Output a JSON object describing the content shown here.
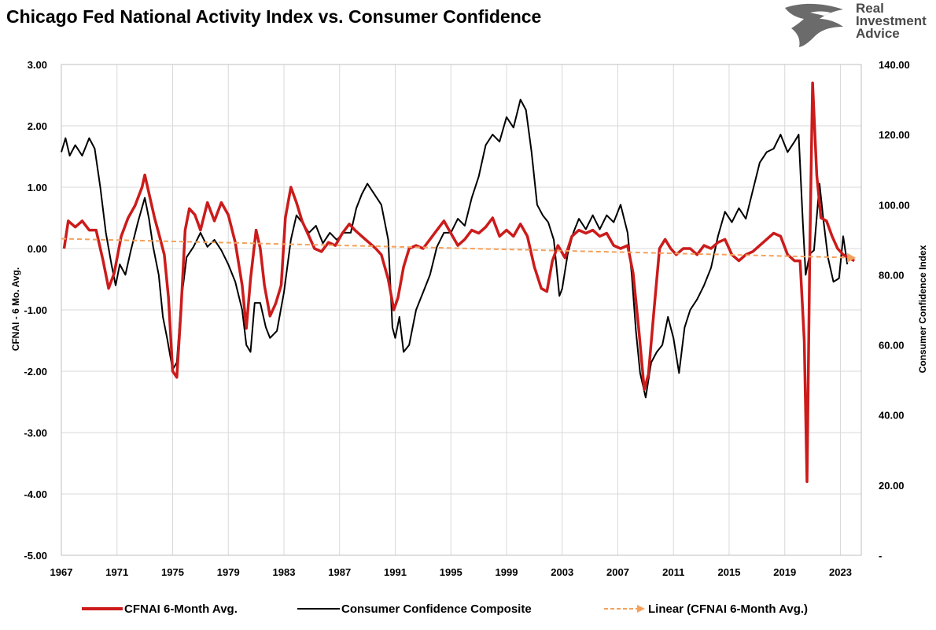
{
  "chart_data": {
    "type": "line",
    "title": "Chicago Fed National Activity Index vs. Consumer Confidence",
    "brand": {
      "lines": [
        "Real",
        "Investment",
        "Advice"
      ],
      "icon": "eagle-logo-icon"
    },
    "ylabel_left": "CFNAI - 6 Mo. Avg.",
    "ylabel_right": "Consumer Confidence Index",
    "ylim_left": [
      -5,
      3
    ],
    "ylim_right": [
      0,
      140
    ],
    "yticks_left": [
      "3.00",
      "2.00",
      "1.00",
      "0.00",
      "-1.00",
      "-2.00",
      "-3.00",
      "-4.00",
      "-5.00"
    ],
    "yticks_right": [
      "140.00",
      "120.00",
      "100.00",
      "80.00",
      "60.00",
      "40.00",
      "20.00",
      "-"
    ],
    "xlim": [
      1967,
      2024.5
    ],
    "xticks": [
      "1967",
      "1971",
      "1975",
      "1979",
      "1983",
      "1987",
      "1991",
      "1995",
      "1999",
      "2003",
      "2007",
      "2011",
      "2015",
      "2019",
      "2023"
    ],
    "grid": true,
    "legend_position": "bottom",
    "series": [
      {
        "name": "CFNAI 6-Month Avg.",
        "axis": "left",
        "color": "#cc1b1b",
        "points": [
          [
            1967.2,
            0.0
          ],
          [
            1967.5,
            0.45
          ],
          [
            1968.0,
            0.35
          ],
          [
            1968.5,
            0.45
          ],
          [
            1969.0,
            0.3
          ],
          [
            1969.5,
            0.3
          ],
          [
            1970.0,
            -0.2
          ],
          [
            1970.4,
            -0.65
          ],
          [
            1970.8,
            -0.4
          ],
          [
            1971.3,
            0.2
          ],
          [
            1971.8,
            0.5
          ],
          [
            1972.3,
            0.7
          ],
          [
            1972.8,
            1.0
          ],
          [
            1973.0,
            1.2
          ],
          [
            1973.3,
            0.9
          ],
          [
            1973.7,
            0.5
          ],
          [
            1974.0,
            0.25
          ],
          [
            1974.4,
            -0.1
          ],
          [
            1974.7,
            -0.8
          ],
          [
            1975.0,
            -2.0
          ],
          [
            1975.3,
            -2.1
          ],
          [
            1975.6,
            -1.0
          ],
          [
            1975.9,
            0.3
          ],
          [
            1976.2,
            0.65
          ],
          [
            1976.6,
            0.55
          ],
          [
            1977.0,
            0.3
          ],
          [
            1977.5,
            0.75
          ],
          [
            1978.0,
            0.45
          ],
          [
            1978.5,
            0.75
          ],
          [
            1979.0,
            0.55
          ],
          [
            1979.5,
            0.1
          ],
          [
            1980.0,
            -0.6
          ],
          [
            1980.3,
            -1.3
          ],
          [
            1980.6,
            -0.5
          ],
          [
            1981.0,
            0.3
          ],
          [
            1981.3,
            0.0
          ],
          [
            1981.6,
            -0.6
          ],
          [
            1982.0,
            -1.1
          ],
          [
            1982.4,
            -0.9
          ],
          [
            1982.8,
            -0.6
          ],
          [
            1983.1,
            0.5
          ],
          [
            1983.5,
            1.0
          ],
          [
            1983.9,
            0.75
          ],
          [
            1984.3,
            0.45
          ],
          [
            1984.8,
            0.2
          ],
          [
            1985.2,
            0.0
          ],
          [
            1985.7,
            -0.05
          ],
          [
            1986.2,
            0.1
          ],
          [
            1986.7,
            0.05
          ],
          [
            1987.2,
            0.25
          ],
          [
            1987.7,
            0.4
          ],
          [
            1988.1,
            0.3
          ],
          [
            1988.6,
            0.2
          ],
          [
            1989.1,
            0.1
          ],
          [
            1989.6,
            0.0
          ],
          [
            1990.0,
            -0.1
          ],
          [
            1990.5,
            -0.5
          ],
          [
            1990.9,
            -1.0
          ],
          [
            1991.2,
            -0.8
          ],
          [
            1991.6,
            -0.3
          ],
          [
            1992.0,
            0.0
          ],
          [
            1992.5,
            0.05
          ],
          [
            1993.0,
            0.0
          ],
          [
            1993.5,
            0.15
          ],
          [
            1994.0,
            0.3
          ],
          [
            1994.5,
            0.45
          ],
          [
            1995.0,
            0.25
          ],
          [
            1995.5,
            0.05
          ],
          [
            1996.0,
            0.15
          ],
          [
            1996.5,
            0.3
          ],
          [
            1997.0,
            0.25
          ],
          [
            1997.5,
            0.35
          ],
          [
            1998.0,
            0.5
          ],
          [
            1998.5,
            0.2
          ],
          [
            1999.0,
            0.3
          ],
          [
            1999.5,
            0.2
          ],
          [
            2000.0,
            0.4
          ],
          [
            2000.5,
            0.2
          ],
          [
            2001.0,
            -0.3
          ],
          [
            2001.5,
            -0.65
          ],
          [
            2001.9,
            -0.7
          ],
          [
            2002.3,
            -0.2
          ],
          [
            2002.7,
            0.05
          ],
          [
            2003.2,
            -0.15
          ],
          [
            2003.7,
            0.2
          ],
          [
            2004.2,
            0.3
          ],
          [
            2004.7,
            0.25
          ],
          [
            2005.2,
            0.3
          ],
          [
            2005.7,
            0.2
          ],
          [
            2006.2,
            0.25
          ],
          [
            2006.7,
            0.05
          ],
          [
            2007.2,
            0.0
          ],
          [
            2007.7,
            0.05
          ],
          [
            2008.1,
            -0.4
          ],
          [
            2008.5,
            -1.3
          ],
          [
            2008.9,
            -2.3
          ],
          [
            2009.2,
            -2.05
          ],
          [
            2009.6,
            -1.0
          ],
          [
            2010.0,
            0.0
          ],
          [
            2010.4,
            0.15
          ],
          [
            2010.8,
            0.0
          ],
          [
            2011.2,
            -0.1
          ],
          [
            2011.7,
            0.0
          ],
          [
            2012.2,
            0.0
          ],
          [
            2012.7,
            -0.1
          ],
          [
            2013.2,
            0.05
          ],
          [
            2013.7,
            0.0
          ],
          [
            2014.2,
            0.1
          ],
          [
            2014.7,
            0.15
          ],
          [
            2015.2,
            -0.1
          ],
          [
            2015.7,
            -0.2
          ],
          [
            2016.2,
            -0.1
          ],
          [
            2016.7,
            -0.05
          ],
          [
            2017.2,
            0.05
          ],
          [
            2017.7,
            0.15
          ],
          [
            2018.2,
            0.25
          ],
          [
            2018.7,
            0.2
          ],
          [
            2019.2,
            -0.1
          ],
          [
            2019.7,
            -0.2
          ],
          [
            2020.1,
            -0.2
          ],
          [
            2020.4,
            -1.5
          ],
          [
            2020.6,
            -3.8
          ],
          [
            2020.8,
            0.0
          ],
          [
            2021.0,
            2.7
          ],
          [
            2021.3,
            1.2
          ],
          [
            2021.6,
            0.5
          ],
          [
            2022.0,
            0.45
          ],
          [
            2022.4,
            0.2
          ],
          [
            2022.8,
            0.0
          ],
          [
            2023.2,
            -0.1
          ],
          [
            2023.6,
            -0.15
          ],
          [
            2024.0,
            -0.2
          ]
        ]
      },
      {
        "name": "Consumer Confidence Composite",
        "axis": "right",
        "color": "#000000",
        "points": [
          [
            1967.0,
            115
          ],
          [
            1967.3,
            119
          ],
          [
            1967.6,
            114
          ],
          [
            1968.0,
            117
          ],
          [
            1968.5,
            114
          ],
          [
            1969.0,
            119
          ],
          [
            1969.4,
            116
          ],
          [
            1969.8,
            105
          ],
          [
            1970.2,
            92
          ],
          [
            1970.6,
            83
          ],
          [
            1970.9,
            77
          ],
          [
            1971.2,
            83
          ],
          [
            1971.6,
            80
          ],
          [
            1972.0,
            87
          ],
          [
            1972.5,
            95
          ],
          [
            1973.0,
            102
          ],
          [
            1973.3,
            96
          ],
          [
            1973.6,
            88
          ],
          [
            1974.0,
            80
          ],
          [
            1974.3,
            68
          ],
          [
            1974.6,
            62
          ],
          [
            1975.0,
            53
          ],
          [
            1975.3,
            55
          ],
          [
            1975.6,
            72
          ],
          [
            1976.0,
            85
          ],
          [
            1976.5,
            88
          ],
          [
            1977.0,
            92
          ],
          [
            1977.5,
            88
          ],
          [
            1978.0,
            90
          ],
          [
            1978.5,
            87
          ],
          [
            1979.0,
            83
          ],
          [
            1979.5,
            78
          ],
          [
            1980.0,
            70
          ],
          [
            1980.3,
            60
          ],
          [
            1980.6,
            58
          ],
          [
            1980.9,
            72
          ],
          [
            1981.3,
            72
          ],
          [
            1981.7,
            65
          ],
          [
            1982.0,
            62
          ],
          [
            1982.5,
            64
          ],
          [
            1983.0,
            75
          ],
          [
            1983.5,
            90
          ],
          [
            1983.9,
            97
          ],
          [
            1984.3,
            95
          ],
          [
            1984.8,
            92
          ],
          [
            1985.3,
            94
          ],
          [
            1985.8,
            89
          ],
          [
            1986.3,
            92
          ],
          [
            1986.8,
            90
          ],
          [
            1987.3,
            92
          ],
          [
            1987.8,
            92
          ],
          [
            1988.2,
            99
          ],
          [
            1988.6,
            103
          ],
          [
            1989.0,
            106
          ],
          [
            1989.5,
            103
          ],
          [
            1990.0,
            100
          ],
          [
            1990.5,
            90
          ],
          [
            1990.8,
            65
          ],
          [
            1991.0,
            62
          ],
          [
            1991.3,
            68
          ],
          [
            1991.6,
            58
          ],
          [
            1992.0,
            60
          ],
          [
            1992.5,
            70
          ],
          [
            1993.0,
            75
          ],
          [
            1993.5,
            80
          ],
          [
            1994.0,
            88
          ],
          [
            1994.5,
            92
          ],
          [
            1995.0,
            92
          ],
          [
            1995.5,
            96
          ],
          [
            1996.0,
            94
          ],
          [
            1996.5,
            102
          ],
          [
            1997.0,
            108
          ],
          [
            1997.5,
            117
          ],
          [
            1998.0,
            120
          ],
          [
            1998.5,
            118
          ],
          [
            1999.0,
            125
          ],
          [
            1999.5,
            122
          ],
          [
            2000.0,
            130
          ],
          [
            2000.4,
            127
          ],
          [
            2000.8,
            115
          ],
          [
            2001.2,
            100
          ],
          [
            2001.6,
            97
          ],
          [
            2002.0,
            95
          ],
          [
            2002.4,
            90
          ],
          [
            2002.8,
            74
          ],
          [
            2003.0,
            76
          ],
          [
            2003.4,
            86
          ],
          [
            2003.8,
            92
          ],
          [
            2004.2,
            96
          ],
          [
            2004.7,
            93
          ],
          [
            2005.2,
            97
          ],
          [
            2005.7,
            93
          ],
          [
            2006.2,
            97
          ],
          [
            2006.7,
            95
          ],
          [
            2007.2,
            100
          ],
          [
            2007.7,
            92
          ],
          [
            2008.0,
            80
          ],
          [
            2008.3,
            64
          ],
          [
            2008.6,
            52
          ],
          [
            2009.0,
            45
          ],
          [
            2009.4,
            55
          ],
          [
            2009.8,
            58
          ],
          [
            2010.2,
            60
          ],
          [
            2010.6,
            68
          ],
          [
            2011.0,
            62
          ],
          [
            2011.4,
            52
          ],
          [
            2011.8,
            65
          ],
          [
            2012.2,
            70
          ],
          [
            2012.7,
            73
          ],
          [
            2013.2,
            77
          ],
          [
            2013.7,
            82
          ],
          [
            2014.2,
            91
          ],
          [
            2014.7,
            98
          ],
          [
            2015.2,
            95
          ],
          [
            2015.7,
            99
          ],
          [
            2016.2,
            96
          ],
          [
            2016.7,
            104
          ],
          [
            2017.2,
            112
          ],
          [
            2017.7,
            115
          ],
          [
            2018.2,
            116
          ],
          [
            2018.7,
            120
          ],
          [
            2019.2,
            115
          ],
          [
            2019.7,
            118
          ],
          [
            2020.0,
            120
          ],
          [
            2020.3,
            95
          ],
          [
            2020.5,
            80
          ],
          [
            2020.8,
            86
          ],
          [
            2021.1,
            87
          ],
          [
            2021.5,
            106
          ],
          [
            2021.8,
            95
          ],
          [
            2022.1,
            85
          ],
          [
            2022.5,
            78
          ],
          [
            2022.9,
            79
          ],
          [
            2023.2,
            91
          ],
          [
            2023.5,
            83
          ]
        ]
      },
      {
        "name": "Linear (CFNAI 6-Month Avg.)",
        "axis": "left",
        "color": "#f4a15c",
        "dashed": true,
        "points": [
          [
            1967.0,
            0.16
          ],
          [
            2024.0,
            -0.15
          ]
        ]
      }
    ]
  }
}
